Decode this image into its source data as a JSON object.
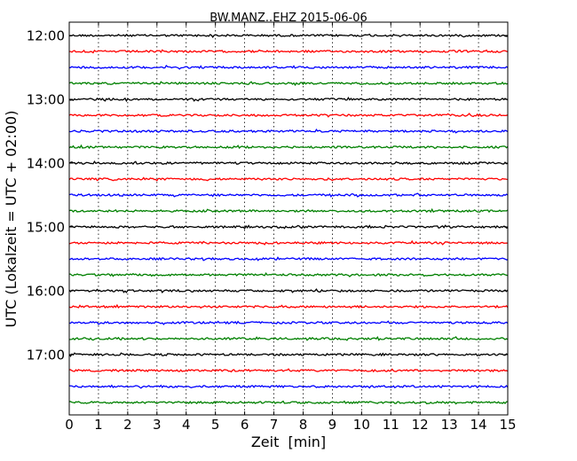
{
  "chart_data": {
    "type": "line",
    "title": "BW.MANZ..EHZ 2015-06-06",
    "xlabel": "Zeit  [min]",
    "ylabel": "UTC (Lokalzeit = UTC + 02:00)",
    "xlim": [
      0,
      15
    ],
    "x_ticks": [
      0,
      1,
      2,
      3,
      4,
      5,
      6,
      7,
      8,
      9,
      10,
      11,
      12,
      13,
      14,
      15
    ],
    "x_tick_labels": [
      "0",
      "1",
      "2",
      "3",
      "4",
      "5",
      "6",
      "7",
      "8",
      "9",
      "10",
      "11",
      "12",
      "13",
      "14",
      "15"
    ],
    "y_tick_labels": [
      "12:00",
      "13:00",
      "14:00",
      "15:00",
      "16:00",
      "17:00"
    ],
    "grid": "vertical dotted",
    "series": [
      {
        "start": "12:00",
        "color": "#000000"
      },
      {
        "start": "12:15",
        "color": "#ff0000"
      },
      {
        "start": "12:30",
        "color": "#0000ff"
      },
      {
        "start": "12:45",
        "color": "#008000"
      },
      {
        "start": "13:00",
        "color": "#000000"
      },
      {
        "start": "13:15",
        "color": "#ff0000"
      },
      {
        "start": "13:30",
        "color": "#0000ff"
      },
      {
        "start": "13:45",
        "color": "#008000"
      },
      {
        "start": "14:00",
        "color": "#000000"
      },
      {
        "start": "14:15",
        "color": "#ff0000"
      },
      {
        "start": "14:30",
        "color": "#0000ff"
      },
      {
        "start": "14:45",
        "color": "#008000"
      },
      {
        "start": "15:00",
        "color": "#000000"
      },
      {
        "start": "15:15",
        "color": "#ff0000"
      },
      {
        "start": "15:30",
        "color": "#0000ff"
      },
      {
        "start": "15:45",
        "color": "#008000"
      },
      {
        "start": "16:00",
        "color": "#000000"
      },
      {
        "start": "16:15",
        "color": "#ff0000"
      },
      {
        "start": "16:30",
        "color": "#0000ff"
      },
      {
        "start": "16:45",
        "color": "#008000"
      },
      {
        "start": "17:00",
        "color": "#000000"
      },
      {
        "start": "17:15",
        "color": "#ff0000"
      },
      {
        "start": "17:30",
        "color": "#0000ff"
      },
      {
        "start": "17:45",
        "color": "#008000"
      }
    ]
  }
}
